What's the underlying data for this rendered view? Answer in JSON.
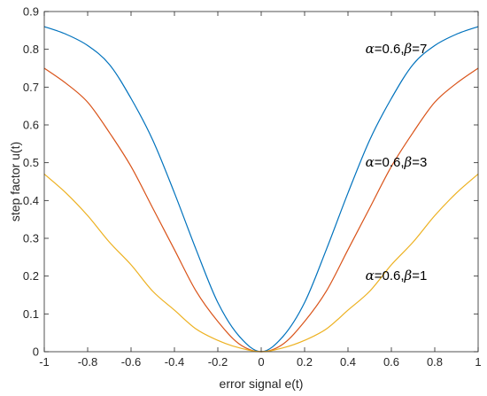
{
  "chart_data": {
    "type": "line",
    "title": "",
    "xlabel": "error signal e(t)",
    "ylabel": "step factor u(t)",
    "xlim": [
      -1,
      1
    ],
    "ylim": [
      0,
      0.9
    ],
    "xticks": [
      "-1",
      "-0.8",
      "-0.6",
      "-0.4",
      "-0.2",
      "0",
      "0.2",
      "0.4",
      "0.6",
      "0.8",
      "1"
    ],
    "yticks": [
      "0",
      "0.1",
      "0.2",
      "0.3",
      "0.4",
      "0.5",
      "0.6",
      "0.7",
      "0.8",
      "0.9"
    ],
    "grid": false,
    "legend": "none",
    "x": [
      -1,
      -0.9,
      -0.8,
      -0.7,
      -0.6,
      -0.5,
      -0.4,
      -0.3,
      -0.2,
      -0.1,
      0,
      0.1,
      0.2,
      0.3,
      0.4,
      0.5,
      0.6,
      0.7,
      0.8,
      0.9,
      1
    ],
    "series": [
      {
        "color": "#0072BD",
        "values": [
          0.86,
          0.84,
          0.81,
          0.76,
          0.67,
          0.56,
          0.42,
          0.27,
          0.13,
          0.04,
          0.0,
          0.04,
          0.13,
          0.27,
          0.42,
          0.56,
          0.67,
          0.76,
          0.81,
          0.84,
          0.86
        ]
      },
      {
        "color": "#D95319",
        "values": [
          0.75,
          0.71,
          0.66,
          0.58,
          0.49,
          0.38,
          0.27,
          0.16,
          0.08,
          0.02,
          0.0,
          0.02,
          0.08,
          0.16,
          0.27,
          0.38,
          0.49,
          0.58,
          0.66,
          0.71,
          0.75
        ]
      },
      {
        "color": "#EDB120",
        "values": [
          0.47,
          0.42,
          0.36,
          0.29,
          0.23,
          0.16,
          0.11,
          0.06,
          0.03,
          0.01,
          0.0,
          0.01,
          0.03,
          0.06,
          0.11,
          0.16,
          0.23,
          0.29,
          0.36,
          0.42,
          0.47
        ]
      }
    ],
    "annotations": [
      {
        "alpha_symbol": "α",
        "alpha_text": "=0.6,",
        "beta_symbol": "β",
        "beta_text": "=7",
        "x": 0.48,
        "y": 0.79
      },
      {
        "alpha_symbol": "α",
        "alpha_text": "=0.6,",
        "beta_symbol": "β",
        "beta_text": "=3",
        "x": 0.48,
        "y": 0.49
      },
      {
        "alpha_symbol": "α",
        "alpha_text": "=0.6,",
        "beta_symbol": "β",
        "beta_text": "=1",
        "x": 0.48,
        "y": 0.19
      }
    ]
  }
}
